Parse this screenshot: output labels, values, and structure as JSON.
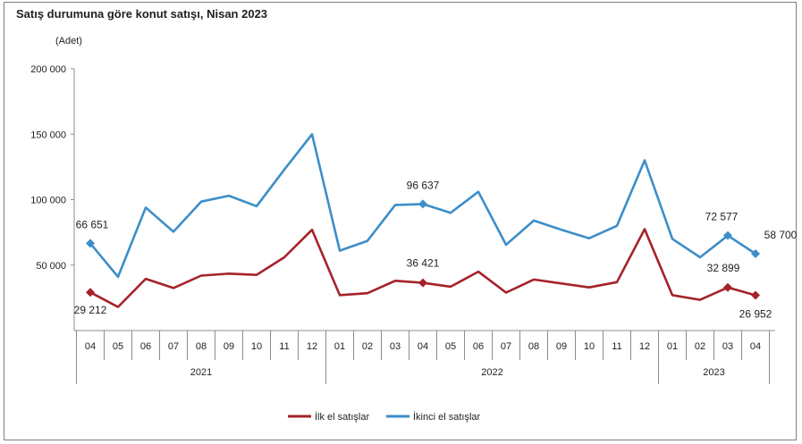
{
  "title": "Satış durumuna göre konut satışı, Nisan 2023",
  "unit_label": "(Adet)",
  "chart_data": {
    "type": "line",
    "title": "Satış durumuna göre konut satışı, Nisan 2023",
    "ylabel": "(Adet)",
    "ylim": [
      0,
      200000
    ],
    "y_ticks": [
      {
        "value": 50000,
        "label": "50 000"
      },
      {
        "value": 100000,
        "label": "100 000"
      },
      {
        "value": 150000,
        "label": "150 000"
      },
      {
        "value": 200000,
        "label": "200 000"
      }
    ],
    "categories": [
      "04",
      "05",
      "06",
      "07",
      "08",
      "09",
      "10",
      "11",
      "12",
      "01",
      "02",
      "03",
      "04",
      "05",
      "06",
      "07",
      "08",
      "09",
      "10",
      "11",
      "12",
      "01",
      "02",
      "03",
      "04"
    ],
    "year_groups": [
      {
        "label": "2021",
        "start": 0,
        "end": 8
      },
      {
        "label": "2022",
        "start": 9,
        "end": 20
      },
      {
        "label": "2023",
        "start": 21,
        "end": 24
      }
    ],
    "legend_position": "bottom",
    "series": [
      {
        "name": "İlk el satışlar",
        "color": "#a5222a",
        "values": [
          29212,
          18000,
          39500,
          32500,
          42000,
          43500,
          42500,
          56000,
          77000,
          27000,
          28500,
          38000,
          36421,
          33500,
          45000,
          29000,
          39000,
          36000,
          33000,
          37000,
          77500,
          27000,
          23500,
          32899,
          26952
        ],
        "labeled": [
          {
            "index": 0,
            "label": "29 212"
          },
          {
            "index": 12,
            "label": "36 421"
          },
          {
            "index": 23,
            "label": "32 899"
          },
          {
            "index": 24,
            "label": "26 952"
          }
        ]
      },
      {
        "name": "İkinci el satışlar",
        "color": "#3d8ec9",
        "values": [
          66651,
          41000,
          94000,
          75500,
          98500,
          103000,
          95000,
          123000,
          150000,
          61000,
          68500,
          96000,
          96637,
          90000,
          106000,
          65500,
          84000,
          77000,
          70500,
          80000,
          130000,
          70000,
          56000,
          72577,
          58700
        ],
        "labeled": [
          {
            "index": 0,
            "label": "66 651"
          },
          {
            "index": 12,
            "label": "96 637"
          },
          {
            "index": 23,
            "label": "72 577"
          },
          {
            "index": 24,
            "label": "58 700"
          }
        ]
      }
    ]
  }
}
